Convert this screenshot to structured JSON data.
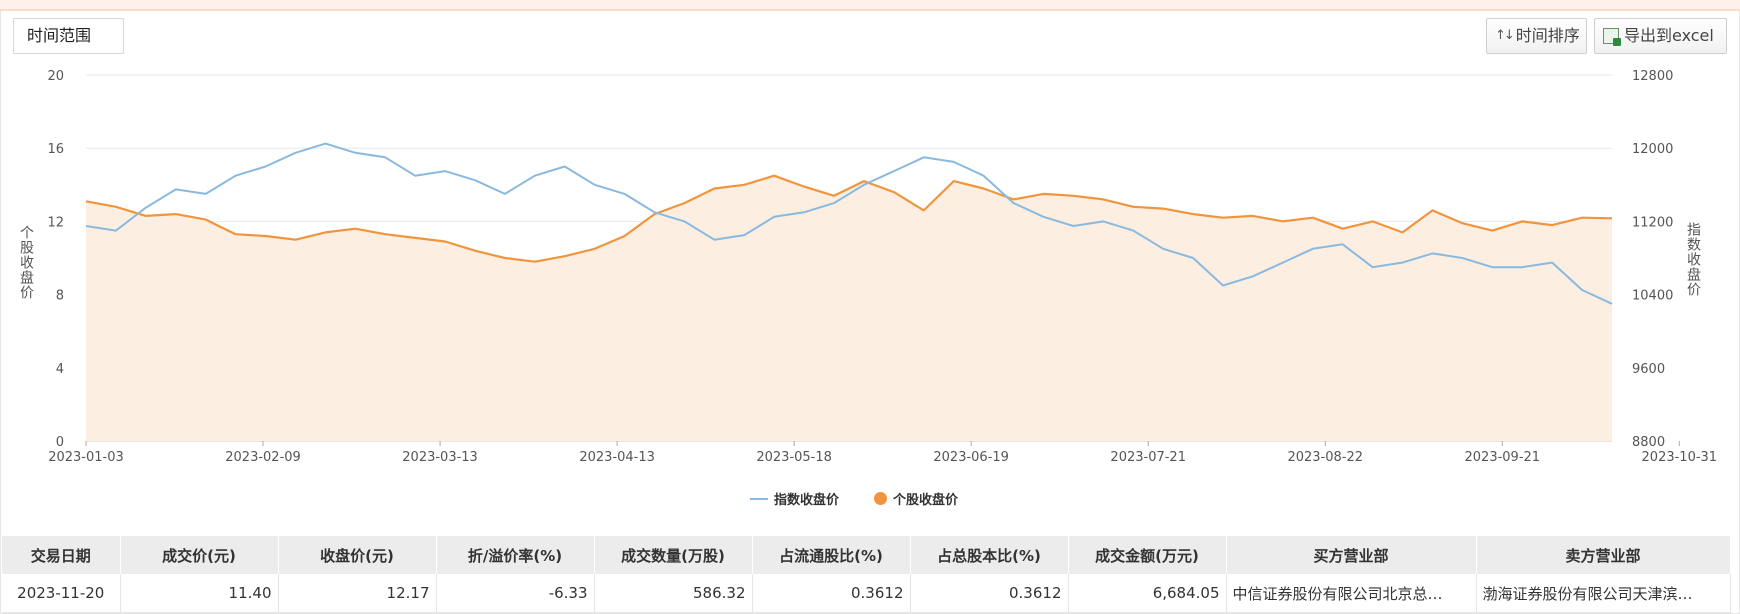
{
  "toolbar": {
    "range_label": "时间范围",
    "sort_label": "时间排序",
    "sort_icon": "↑↓",
    "export_label": "导出到excel"
  },
  "colors": {
    "index_line": "#8ab9e0",
    "stock_line": "#f0953e",
    "stock_fill": "#fdeee2"
  },
  "chart_data": {
    "type": "line",
    "title": "",
    "ylabel_left": "个股收盘价",
    "ylabel_right": "指数收盘价",
    "left_axis": {
      "min": 0,
      "max": 20,
      "ticks": [
        "0",
        "4",
        "8",
        "12",
        "16",
        "20"
      ]
    },
    "right_axis": {
      "min": 8800,
      "max": 12800,
      "ticks": [
        "8800",
        "9600",
        "10400",
        "11200",
        "12000",
        "12800"
      ]
    },
    "x_ticks": [
      "2023-01-03",
      "2023-02-09",
      "2023-03-13",
      "2023-04-13",
      "2023-05-18",
      "2023-06-19",
      "2023-07-21",
      "2023-08-22",
      "2023-09-21",
      "2023-10-31"
    ],
    "grid": true,
    "legend_position": "bottom-center",
    "series": [
      {
        "name": "指数收盘价",
        "axis": "right",
        "points": [
          [
            0,
            11150
          ],
          [
            6,
            11100
          ],
          [
            12,
            11350
          ],
          [
            18,
            11550
          ],
          [
            24,
            11500
          ],
          [
            30,
            11700
          ],
          [
            36,
            11800
          ],
          [
            42,
            11950
          ],
          [
            48,
            12050
          ],
          [
            54,
            11950
          ],
          [
            60,
            11900
          ],
          [
            66,
            11700
          ],
          [
            72,
            11750
          ],
          [
            78,
            11650
          ],
          [
            84,
            11500
          ],
          [
            90,
            11700
          ],
          [
            96,
            11800
          ],
          [
            102,
            11600
          ],
          [
            108,
            11500
          ],
          [
            114,
            11300
          ],
          [
            120,
            11200
          ],
          [
            126,
            11000
          ],
          [
            132,
            11050
          ],
          [
            138,
            11250
          ],
          [
            144,
            11300
          ],
          [
            150,
            11400
          ],
          [
            156,
            11600
          ],
          [
            162,
            11750
          ],
          [
            168,
            11900
          ],
          [
            174,
            11850
          ],
          [
            180,
            11700
          ],
          [
            186,
            11400
          ],
          [
            192,
            11250
          ],
          [
            198,
            11150
          ],
          [
            204,
            11200
          ],
          [
            210,
            11100
          ],
          [
            216,
            10900
          ],
          [
            222,
            10800
          ],
          [
            228,
            10500
          ],
          [
            234,
            10600
          ],
          [
            240,
            10750
          ],
          [
            246,
            10900
          ],
          [
            252,
            10950
          ],
          [
            258,
            10700
          ],
          [
            264,
            10750
          ],
          [
            270,
            10850
          ],
          [
            276,
            10800
          ],
          [
            282,
            10700
          ],
          [
            288,
            10700
          ],
          [
            294,
            10750
          ],
          [
            300,
            10450
          ],
          [
            306,
            10300
          ]
        ]
      },
      {
        "name": "个股收盘价",
        "axis": "left",
        "values_note": "daily close",
        "points": [
          [
            0,
            13.1
          ],
          [
            6,
            12.8
          ],
          [
            12,
            12.3
          ],
          [
            18,
            12.4
          ],
          [
            24,
            12.1
          ],
          [
            30,
            11.3
          ],
          [
            36,
            11.2
          ],
          [
            42,
            11.0
          ],
          [
            48,
            11.4
          ],
          [
            54,
            11.6
          ],
          [
            60,
            11.3
          ],
          [
            66,
            11.1
          ],
          [
            72,
            10.9
          ],
          [
            78,
            10.4
          ],
          [
            84,
            10.0
          ],
          [
            90,
            9.8
          ],
          [
            96,
            10.1
          ],
          [
            102,
            10.5
          ],
          [
            108,
            11.2
          ],
          [
            114,
            12.4
          ],
          [
            120,
            13.0
          ],
          [
            126,
            13.8
          ],
          [
            132,
            14.0
          ],
          [
            138,
            14.5
          ],
          [
            144,
            13.9
          ],
          [
            150,
            13.4
          ],
          [
            156,
            14.2
          ],
          [
            162,
            13.6
          ],
          [
            168,
            12.6
          ],
          [
            174,
            14.2
          ],
          [
            180,
            13.8
          ],
          [
            186,
            13.2
          ],
          [
            192,
            13.5
          ],
          [
            198,
            13.4
          ],
          [
            204,
            13.2
          ],
          [
            210,
            12.8
          ],
          [
            216,
            12.7
          ],
          [
            222,
            12.4
          ],
          [
            228,
            12.2
          ],
          [
            234,
            12.3
          ],
          [
            240,
            12.0
          ],
          [
            246,
            12.2
          ],
          [
            252,
            11.6
          ],
          [
            258,
            12.0
          ],
          [
            264,
            11.4
          ],
          [
            270,
            12.6
          ],
          [
            276,
            11.9
          ],
          [
            282,
            11.5
          ],
          [
            288,
            12.0
          ],
          [
            294,
            11.8
          ],
          [
            300,
            12.2
          ],
          [
            306,
            12.17
          ]
        ]
      }
    ]
  },
  "table": {
    "headers": [
      "交易日期",
      "成交价(元)",
      "收盘价(元)",
      "折/溢价率(%)",
      "成交数量(万股)",
      "占流通股比(%)",
      "占总股本比(%)",
      "成交金额(万元)",
      "买方营业部",
      "卖方营业部"
    ],
    "rows": [
      [
        "2023-11-20",
        "11.40",
        "12.17",
        "-6.33",
        "586.32",
        "0.3612",
        "0.3612",
        "6,684.05",
        "中信证券股份有限公司北京总…",
        "渤海证券股份有限公司天津滨…"
      ]
    ]
  }
}
